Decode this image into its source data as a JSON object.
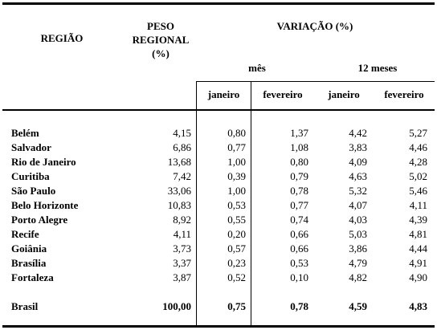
{
  "headers": {
    "region": "REGIÃO",
    "weight_line1": "PESO",
    "weight_line2": "REGIONAL",
    "weight_line3": "(%)",
    "variation": "VARIAÇÃO (%)",
    "month_group": "mês",
    "twelve_group": "12 meses",
    "col_jan_month": "janeiro",
    "col_feb_month": "fevereiro",
    "col_jan_12": "janeiro",
    "col_feb_12": "fevereiro"
  },
  "rows": [
    {
      "region": "Belém",
      "weight": "4,15",
      "jan_m": "0,80",
      "feb_m": "1,37",
      "jan_12": "4,42",
      "feb_12": "5,27"
    },
    {
      "region": "Salvador",
      "weight": "6,86",
      "jan_m": "0,77",
      "feb_m": "1,08",
      "jan_12": "3,83",
      "feb_12": "4,46"
    },
    {
      "region": "Rio de Janeiro",
      "weight": "13,68",
      "jan_m": "1,00",
      "feb_m": "0,80",
      "jan_12": "4,09",
      "feb_12": "4,28"
    },
    {
      "region": "Curitiba",
      "weight": "7,42",
      "jan_m": "0,39",
      "feb_m": "0,79",
      "jan_12": "4,63",
      "feb_12": "5,02"
    },
    {
      "region": "São Paulo",
      "weight": "33,06",
      "jan_m": "1,00",
      "feb_m": "0,78",
      "jan_12": "5,32",
      "feb_12": "5,46"
    },
    {
      "region": "Belo Horizonte",
      "weight": "10,83",
      "jan_m": "0,53",
      "feb_m": "0,77",
      "jan_12": "4,07",
      "feb_12": "4,11"
    },
    {
      "region": "Porto Alegre",
      "weight": "8,92",
      "jan_m": "0,55",
      "feb_m": "0,74",
      "jan_12": "4,03",
      "feb_12": "4,39"
    },
    {
      "region": "Recife",
      "weight": "4,11",
      "jan_m": "0,20",
      "feb_m": "0,66",
      "jan_12": "5,03",
      "feb_12": "4,81"
    },
    {
      "region": "Goiânia",
      "weight": "3,73",
      "jan_m": "0,57",
      "feb_m": "0,66",
      "jan_12": "3,86",
      "feb_12": "4,44"
    },
    {
      "region": "Brasília",
      "weight": "3,37",
      "jan_m": "0,23",
      "feb_m": "0,53",
      "jan_12": "4,79",
      "feb_12": "4,91"
    },
    {
      "region": "Fortaleza",
      "weight": "3,87",
      "jan_m": "0,52",
      "feb_m": "0,10",
      "jan_12": "4,82",
      "feb_12": "4,90"
    }
  ],
  "total": {
    "region": "Brasil",
    "weight": "100,00",
    "jan_m": "0,75",
    "feb_m": "0,78",
    "jan_12": "4,59",
    "feb_12": "4,83"
  }
}
